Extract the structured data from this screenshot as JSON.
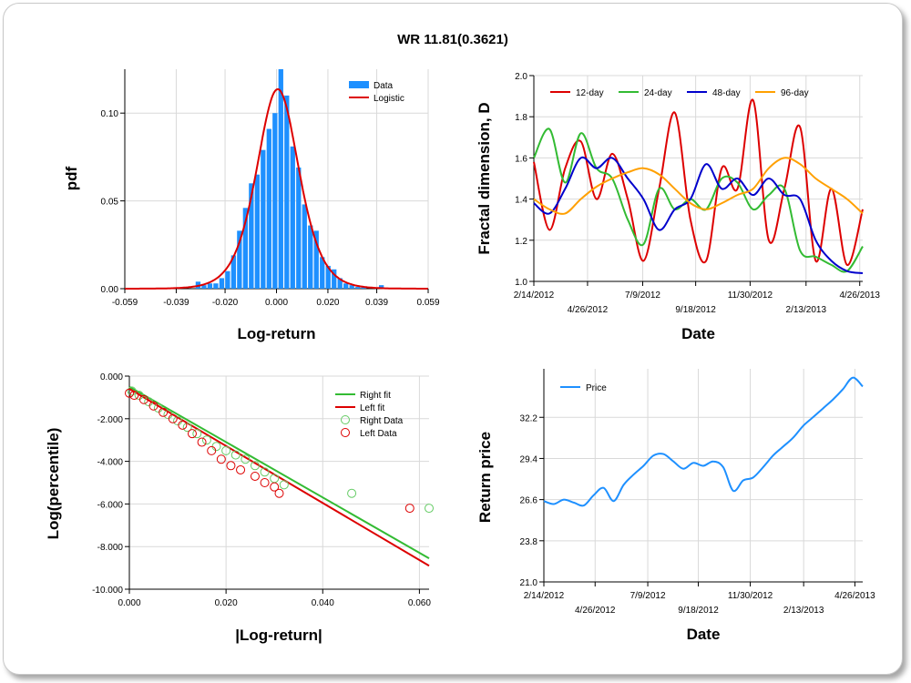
{
  "title": "WR 11.81(0.3621)",
  "chart_data": [
    {
      "id": "histogram",
      "type": "bar",
      "xlabel": "Log-return",
      "ylabel": "pdf",
      "xlim": [
        -0.059,
        0.059
      ],
      "ylim": [
        0,
        0.125
      ],
      "xticks": [
        "-0.059",
        "-0.039",
        "-0.020",
        "0.000",
        "0.020",
        "0.039",
        "0.059"
      ],
      "yticks": [
        "0.00",
        "0.05",
        "0.10"
      ],
      "legend_position": "top-right",
      "grid": true,
      "colors": {
        "bars": "#1e90ff",
        "line": "#dd0000"
      },
      "series": [
        {
          "name": "Data",
          "type": "bar",
          "bin_width": 0.0023,
          "x": [
            -0.0305,
            -0.0282,
            -0.0259,
            -0.0236,
            -0.0213,
            -0.019,
            -0.0167,
            -0.0144,
            -0.0121,
            -0.0098,
            -0.0075,
            -0.0052,
            -0.0029,
            -0.0006,
            0.0017,
            0.004,
            0.0063,
            0.0086,
            0.0109,
            0.0132,
            0.0155,
            0.0178,
            0.0201,
            0.0224,
            0.0247,
            0.027,
            0.0293,
            0.0316,
            0.0339,
            0.0362,
            0.0385,
            0.0408
          ],
          "values": [
            0.004,
            0.002,
            0.003,
            0.003,
            0.006,
            0.01,
            0.019,
            0.033,
            0.046,
            0.06,
            0.065,
            0.079,
            0.091,
            0.1,
            0.125,
            0.11,
            0.081,
            0.069,
            0.048,
            0.036,
            0.033,
            0.018,
            0.013,
            0.011,
            0.006,
            0.003,
            0.002,
            0.001,
            0.001,
            0.0,
            0.0,
            0.002
          ]
        },
        {
          "name": "Logistic",
          "type": "line",
          "location": 0.0005,
          "scale": 0.0055
        }
      ]
    },
    {
      "id": "fractal",
      "type": "line",
      "xlabel": "Date",
      "ylabel": "Fractal dimension, D",
      "ylim": [
        1.0,
        2.0
      ],
      "xticks_upper": [
        "2/14/2012",
        "7/9/2012",
        "11/30/2012",
        "4/26/2013"
      ],
      "xticks_lower": [
        "4/26/2012",
        "9/18/2012",
        "2/13/2013"
      ],
      "yticks": [
        "1.0",
        "1.2",
        "1.4",
        "1.6",
        "1.8",
        "2.0"
      ],
      "legend_position": "top",
      "grid": true,
      "x": [
        "2/14/2012",
        "3/6/2012",
        "3/27/2012",
        "4/17/2012",
        "5/8/2012",
        "5/29/2012",
        "6/19/2012",
        "7/10/2012",
        "7/31/2012",
        "8/21/2012",
        "9/11/2012",
        "10/2/2012",
        "10/23/2012",
        "11/13/2012",
        "12/4/2012",
        "12/25/2012",
        "1/15/2013",
        "2/5/2013",
        "2/26/2013",
        "3/19/2013",
        "4/9/2013",
        "4/30/2013"
      ],
      "series": [
        {
          "name": "12-day",
          "color": "#dd0000",
          "values": [
            1.58,
            1.25,
            1.55,
            1.68,
            1.4,
            1.62,
            1.4,
            1.1,
            1.45,
            1.82,
            1.3,
            1.1,
            1.55,
            1.45,
            1.88,
            1.2,
            1.45,
            1.75,
            1.1,
            1.45,
            1.08,
            1.35
          ]
        },
        {
          "name": "24-day",
          "color": "#33bb33",
          "values": [
            1.6,
            1.74,
            1.48,
            1.72,
            1.55,
            1.5,
            1.3,
            1.18,
            1.45,
            1.35,
            1.4,
            1.35,
            1.5,
            1.48,
            1.35,
            1.42,
            1.45,
            1.15,
            1.12,
            1.08,
            1.05,
            1.17
          ]
        },
        {
          "name": "48-day",
          "color": "#0000cc",
          "values": [
            1.38,
            1.33,
            1.45,
            1.6,
            1.55,
            1.6,
            1.5,
            1.4,
            1.25,
            1.35,
            1.4,
            1.57,
            1.45,
            1.5,
            1.42,
            1.5,
            1.42,
            1.4,
            1.2,
            1.1,
            1.05,
            1.04
          ]
        },
        {
          "name": "96-day",
          "color": "#ffa000",
          "values": [
            1.4,
            1.35,
            1.33,
            1.4,
            1.46,
            1.5,
            1.53,
            1.55,
            1.52,
            1.45,
            1.38,
            1.35,
            1.38,
            1.42,
            1.45,
            1.55,
            1.6,
            1.57,
            1.5,
            1.45,
            1.4,
            1.33
          ]
        }
      ]
    },
    {
      "id": "tails",
      "type": "scatter",
      "xlabel": "|Log-return|",
      "ylabel": "Log(percentile)",
      "xlim": [
        0,
        0.062
      ],
      "ylim": [
        -10,
        0
      ],
      "xticks": [
        "0.000",
        "0.020",
        "0.040",
        "0.060"
      ],
      "yticks": [
        "0.000",
        "-2.000",
        "-4.000",
        "-6.000",
        "-8.000",
        "-10.000"
      ],
      "legend_position": "top-right",
      "grid": true,
      "series": [
        {
          "name": "Right fit",
          "type": "line",
          "color": "#33bb33",
          "x": [
            0,
            0.062
          ],
          "y": [
            -0.5,
            -8.55
          ]
        },
        {
          "name": "Left fit",
          "type": "line",
          "color": "#dd0000",
          "x": [
            0,
            0.062
          ],
          "y": [
            -0.6,
            -8.9
          ]
        },
        {
          "name": "Right Data",
          "type": "scatter",
          "color": "#66cc66",
          "x": [
            0.0005,
            0.002,
            0.004,
            0.006,
            0.008,
            0.01,
            0.012,
            0.014,
            0.016,
            0.018,
            0.02,
            0.022,
            0.024,
            0.026,
            0.028,
            0.03,
            0.032,
            0.046,
            0.062
          ],
          "y": [
            -0.7,
            -0.9,
            -1.2,
            -1.5,
            -1.8,
            -2.1,
            -2.4,
            -2.7,
            -3.0,
            -3.3,
            -3.5,
            -3.7,
            -3.9,
            -4.2,
            -4.5,
            -4.8,
            -5.1,
            -5.5,
            -6.2
          ]
        },
        {
          "name": "Left Data",
          "type": "scatter",
          "color": "#dd0000",
          "x": [
            0.0,
            0.001,
            0.003,
            0.005,
            0.007,
            0.009,
            0.011,
            0.013,
            0.015,
            0.017,
            0.019,
            0.021,
            0.023,
            0.026,
            0.028,
            0.03,
            0.031,
            0.058
          ],
          "y": [
            -0.8,
            -0.9,
            -1.1,
            -1.4,
            -1.7,
            -2.0,
            -2.3,
            -2.7,
            -3.1,
            -3.5,
            -3.9,
            -4.2,
            -4.4,
            -4.7,
            -5.0,
            -5.2,
            -5.5,
            -6.2
          ]
        }
      ]
    },
    {
      "id": "price",
      "type": "line",
      "xlabel": "Date",
      "ylabel": "Return price",
      "ylim": [
        21.0,
        35.5
      ],
      "xticks_upper": [
        "2/14/2012",
        "7/9/2012",
        "11/30/2012",
        "4/26/2013"
      ],
      "xticks_lower": [
        "4/26/2012",
        "9/18/2012",
        "2/13/2013"
      ],
      "yticks": [
        "21.0",
        "23.8",
        "26.6",
        "29.4",
        "32.2"
      ],
      "legend_position": "top-left",
      "grid": true,
      "x": [
        "2/14/2012",
        "2/28/2012",
        "3/13/2012",
        "3/27/2012",
        "4/10/2012",
        "4/24/2012",
        "5/8/2012",
        "5/22/2012",
        "6/5/2012",
        "6/19/2012",
        "7/3/2012",
        "7/17/2012",
        "7/31/2012",
        "8/14/2012",
        "8/28/2012",
        "9/11/2012",
        "9/25/2012",
        "10/9/2012",
        "10/23/2012",
        "11/6/2012",
        "11/20/2012",
        "12/4/2012",
        "12/18/2012",
        "1/1/2013",
        "1/15/2013",
        "1/29/2013",
        "2/12/2013",
        "2/26/2013",
        "3/12/2013",
        "3/26/2013",
        "4/9/2013",
        "4/23/2013",
        "5/7/2013"
      ],
      "series": [
        {
          "name": "Price",
          "color": "#1e90ff",
          "values": [
            26.5,
            26.3,
            26.6,
            26.4,
            26.2,
            26.9,
            27.4,
            26.5,
            27.6,
            28.3,
            28.9,
            29.6,
            29.7,
            29.2,
            28.7,
            29.1,
            28.9,
            29.2,
            28.8,
            27.2,
            27.9,
            28.1,
            28.8,
            29.6,
            30.2,
            30.8,
            31.6,
            32.2,
            32.8,
            33.4,
            34.1,
            34.9,
            34.3
          ]
        }
      ]
    }
  ]
}
